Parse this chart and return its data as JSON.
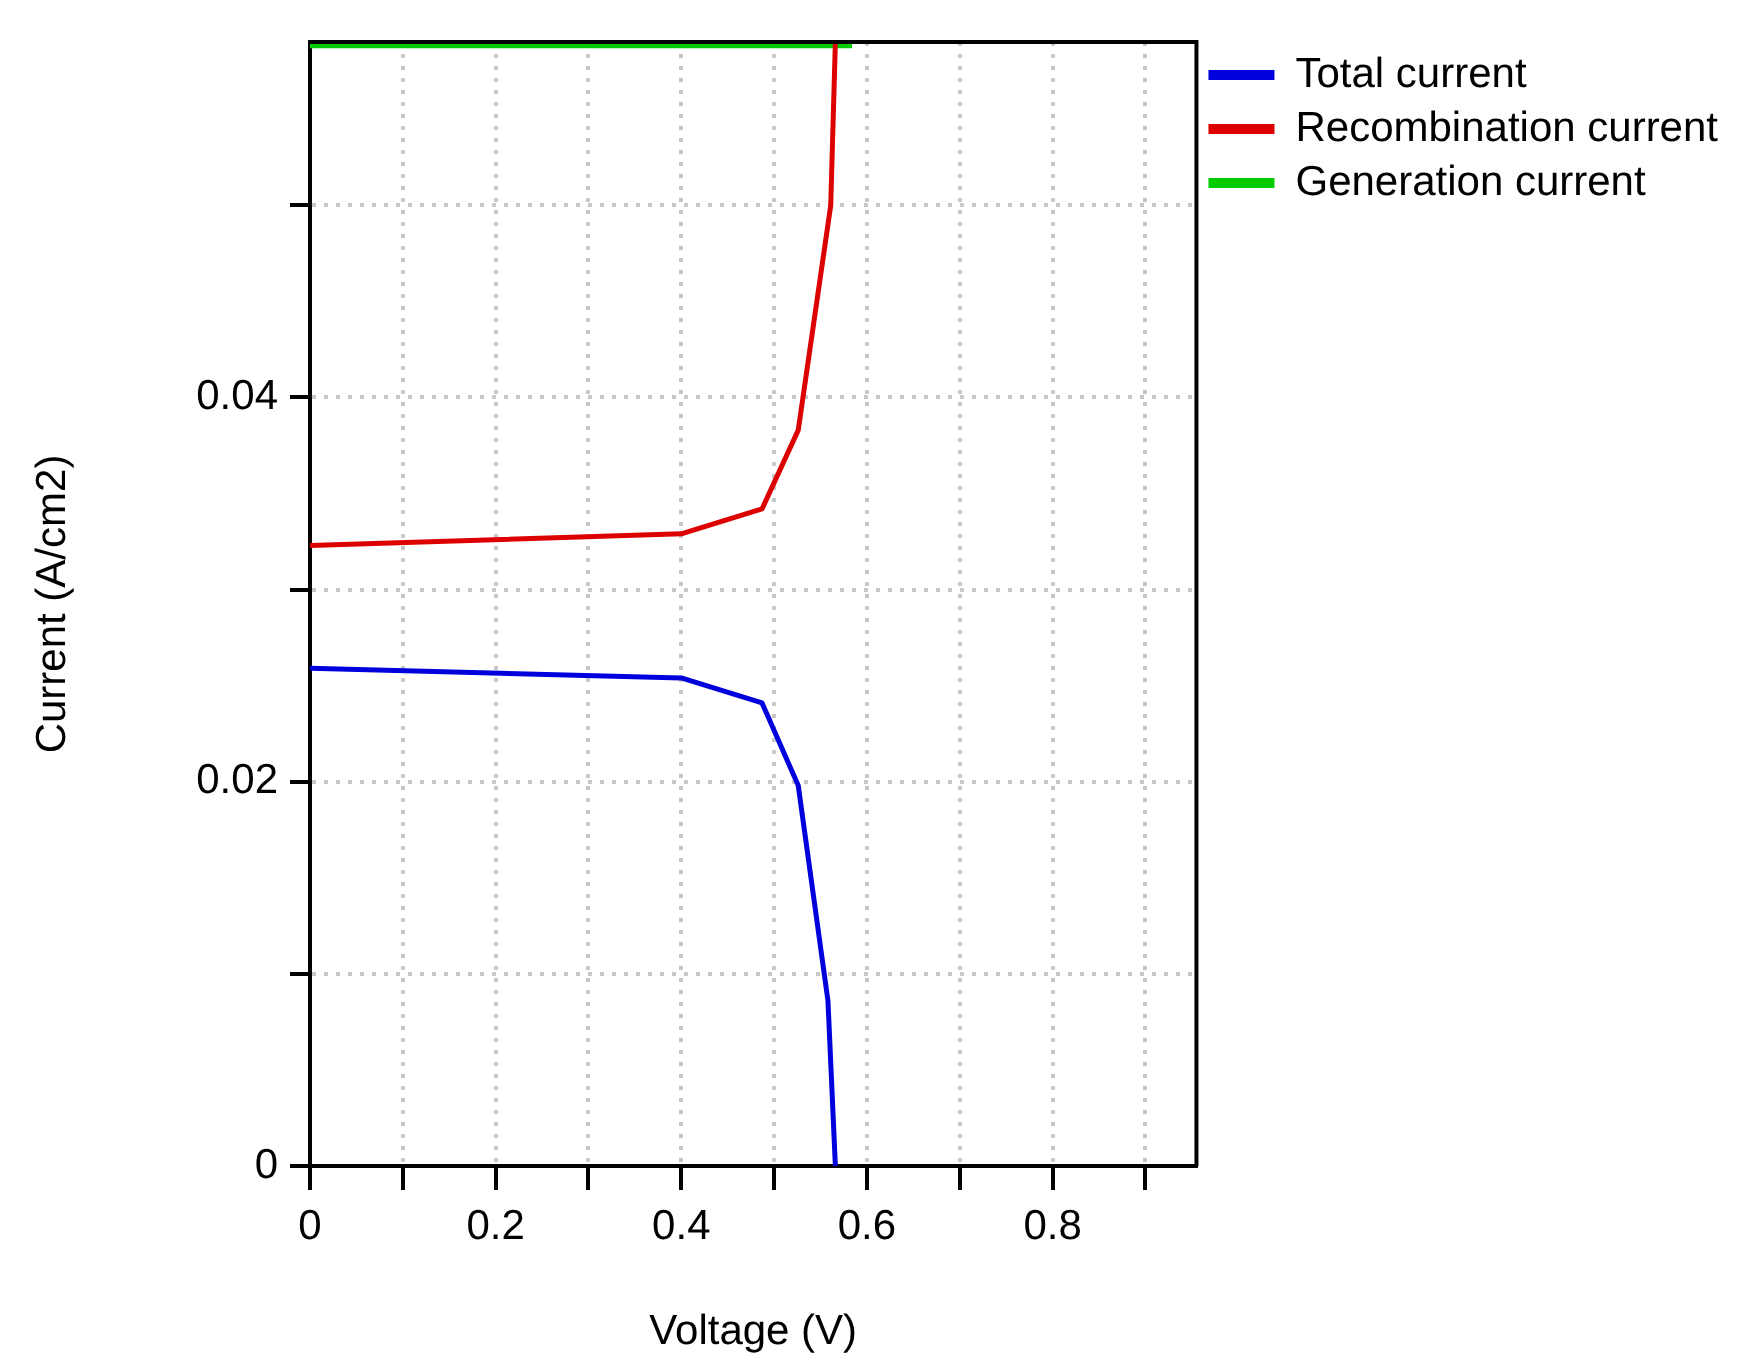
{
  "chart_data": {
    "type": "line",
    "xlabel": "Voltage (V)",
    "ylabel": "Current (A/cm2)",
    "xlim": [
      0,
      0.955
    ],
    "ylim": [
      0,
      0.0585
    ],
    "xticks": [
      0,
      {
        "value": 0.1,
        "label": null
      },
      0.2,
      {
        "value": 0.3,
        "label": null
      },
      0.4,
      {
        "value": 0.5,
        "label": null
      },
      0.6,
      {
        "value": 0.7,
        "label": null
      },
      0.8,
      {
        "value": 0.9,
        "label": null
      }
    ],
    "yticks": [
      0,
      {
        "value": 0.01,
        "label": null
      },
      0.02,
      {
        "value": 0.03,
        "label": null
      },
      0.04,
      {
        "value": 0.05,
        "label": null
      }
    ],
    "grid": true,
    "legend": "top right",
    "marker": "none",
    "line_style": "solid",
    "series": [
      {
        "name": "Total current",
        "color": "#0000dd",
        "x": [
          0,
          0.4,
          0.487,
          0.526,
          0.558,
          0.566
        ],
        "values": [
          0.0259,
          0.0254,
          0.0241,
          0.0198,
          0.0086,
          0
        ]
      },
      {
        "name": "Recombination current",
        "color": "#dd0000",
        "x": [
          0,
          0.4,
          0.487,
          0.526,
          0.561,
          0.566
        ],
        "values": [
          0.0323,
          0.0329,
          0.0342,
          0.0383,
          0.05,
          0.0585
        ]
      },
      {
        "name": "Generation current",
        "color": "#00cc00",
        "x": [
          0,
          0.584
        ],
        "values": [
          0.0583,
          0.0583
        ]
      }
    ]
  }
}
